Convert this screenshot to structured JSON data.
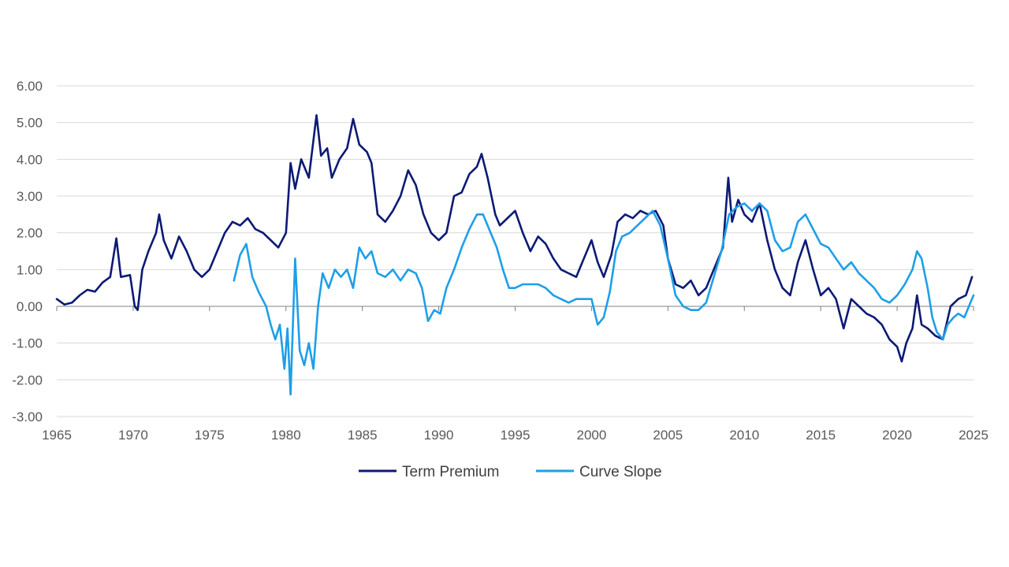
{
  "chart_data": {
    "type": "line",
    "title": "",
    "xlabel": "",
    "ylabel": "",
    "xlim": [
      1965,
      2025
    ],
    "ylim": [
      -3,
      6
    ],
    "grid": true,
    "legend_position": "bottom",
    "x_ticks": [
      {
        "value": 1965,
        "label": "1965"
      },
      {
        "value": 1970,
        "label": "1970"
      },
      {
        "value": 1975,
        "label": "1975"
      },
      {
        "value": 1980,
        "label": "1980"
      },
      {
        "value": 1985,
        "label": "1985"
      },
      {
        "value": 1990,
        "label": "1990"
      },
      {
        "value": 1995,
        "label": "1995"
      },
      {
        "value": 2000,
        "label": "2000"
      },
      {
        "value": 2005,
        "label": "2005"
      },
      {
        "value": 2010,
        "label": "2010"
      },
      {
        "value": 2015,
        "label": "2015"
      },
      {
        "value": 2020,
        "label": "2020"
      },
      {
        "value": 2025,
        "label": "2025"
      }
    ],
    "y_ticks": [
      {
        "value": 6,
        "label": "6.00"
      },
      {
        "value": 5,
        "label": "5.00"
      },
      {
        "value": 4,
        "label": "4.00"
      },
      {
        "value": 3,
        "label": "3.00"
      },
      {
        "value": 2,
        "label": "2.00"
      },
      {
        "value": 1,
        "label": "1.00"
      },
      {
        "value": 0,
        "label": "0.00"
      },
      {
        "value": -1,
        "label": "-1.00"
      },
      {
        "value": -2,
        "label": "-2.00"
      },
      {
        "value": -3,
        "label": "-3.00"
      }
    ],
    "series": [
      {
        "name": "Term Premium",
        "color": "#0c1a74",
        "points": [
          [
            1965.0,
            0.2
          ],
          [
            1965.5,
            0.05
          ],
          [
            1966.0,
            0.1
          ],
          [
            1966.5,
            0.3
          ],
          [
            1967.0,
            0.45
          ],
          [
            1967.5,
            0.4
          ],
          [
            1968.0,
            0.65
          ],
          [
            1968.5,
            0.8
          ],
          [
            1968.9,
            1.85
          ],
          [
            1969.2,
            0.8
          ],
          [
            1969.8,
            0.85
          ],
          [
            1970.1,
            0.0
          ],
          [
            1970.3,
            -0.1
          ],
          [
            1970.6,
            1.0
          ],
          [
            1971.0,
            1.5
          ],
          [
            1971.5,
            2.0
          ],
          [
            1971.7,
            2.5
          ],
          [
            1972.0,
            1.8
          ],
          [
            1972.5,
            1.3
          ],
          [
            1973.0,
            1.9
          ],
          [
            1973.5,
            1.5
          ],
          [
            1974.0,
            1.0
          ],
          [
            1974.5,
            0.8
          ],
          [
            1975.0,
            1.0
          ],
          [
            1975.5,
            1.5
          ],
          [
            1976.0,
            2.0
          ],
          [
            1976.5,
            2.3
          ],
          [
            1977.0,
            2.2
          ],
          [
            1977.5,
            2.4
          ],
          [
            1978.0,
            2.1
          ],
          [
            1978.5,
            2.0
          ],
          [
            1979.0,
            1.8
          ],
          [
            1979.5,
            1.6
          ],
          [
            1980.0,
            2.0
          ],
          [
            1980.3,
            3.9
          ],
          [
            1980.6,
            3.2
          ],
          [
            1981.0,
            4.0
          ],
          [
            1981.5,
            3.5
          ],
          [
            1982.0,
            5.2
          ],
          [
            1982.3,
            4.1
          ],
          [
            1982.7,
            4.3
          ],
          [
            1983.0,
            3.5
          ],
          [
            1983.5,
            4.0
          ],
          [
            1984.0,
            4.3
          ],
          [
            1984.4,
            5.1
          ],
          [
            1984.8,
            4.4
          ],
          [
            1985.3,
            4.2
          ],
          [
            1985.6,
            3.9
          ],
          [
            1986.0,
            2.5
          ],
          [
            1986.5,
            2.3
          ],
          [
            1987.0,
            2.6
          ],
          [
            1987.5,
            3.0
          ],
          [
            1988.0,
            3.7
          ],
          [
            1988.5,
            3.3
          ],
          [
            1989.0,
            2.5
          ],
          [
            1989.5,
            2.0
          ],
          [
            1990.0,
            1.8
          ],
          [
            1990.5,
            2.0
          ],
          [
            1991.0,
            3.0
          ],
          [
            1991.5,
            3.1
          ],
          [
            1992.0,
            3.6
          ],
          [
            1992.5,
            3.8
          ],
          [
            1992.8,
            4.15
          ],
          [
            1993.2,
            3.5
          ],
          [
            1993.7,
            2.5
          ],
          [
            1994.0,
            2.2
          ],
          [
            1994.5,
            2.4
          ],
          [
            1995.0,
            2.6
          ],
          [
            1995.5,
            2.0
          ],
          [
            1996.0,
            1.5
          ],
          [
            1996.5,
            1.9
          ],
          [
            1997.0,
            1.7
          ],
          [
            1997.5,
            1.3
          ],
          [
            1998.0,
            1.0
          ],
          [
            1998.5,
            0.9
          ],
          [
            1999.0,
            0.8
          ],
          [
            1999.5,
            1.3
          ],
          [
            2000.0,
            1.8
          ],
          [
            2000.4,
            1.2
          ],
          [
            2000.8,
            0.8
          ],
          [
            2001.3,
            1.4
          ],
          [
            2001.7,
            2.3
          ],
          [
            2002.2,
            2.5
          ],
          [
            2002.7,
            2.4
          ],
          [
            2003.2,
            2.6
          ],
          [
            2003.7,
            2.5
          ],
          [
            2004.2,
            2.6
          ],
          [
            2004.7,
            2.2
          ],
          [
            2005.0,
            1.3
          ],
          [
            2005.5,
            0.6
          ],
          [
            2006.0,
            0.5
          ],
          [
            2006.5,
            0.7
          ],
          [
            2007.0,
            0.3
          ],
          [
            2007.5,
            0.5
          ],
          [
            2008.0,
            1.0
          ],
          [
            2008.6,
            1.6
          ],
          [
            2008.95,
            3.5
          ],
          [
            2009.2,
            2.3
          ],
          [
            2009.6,
            2.9
          ],
          [
            2010.0,
            2.5
          ],
          [
            2010.5,
            2.3
          ],
          [
            2011.0,
            2.8
          ],
          [
            2011.5,
            1.8
          ],
          [
            2012.0,
            1.0
          ],
          [
            2012.5,
            0.5
          ],
          [
            2013.0,
            0.3
          ],
          [
            2013.5,
            1.2
          ],
          [
            2014.0,
            1.8
          ],
          [
            2014.5,
            1.0
          ],
          [
            2015.0,
            0.3
          ],
          [
            2015.5,
            0.5
          ],
          [
            2016.0,
            0.2
          ],
          [
            2016.5,
            -0.6
          ],
          [
            2017.0,
            0.2
          ],
          [
            2017.5,
            0.0
          ],
          [
            2018.0,
            -0.2
          ],
          [
            2018.5,
            -0.3
          ],
          [
            2019.0,
            -0.5
          ],
          [
            2019.5,
            -0.9
          ],
          [
            2020.0,
            -1.1
          ],
          [
            2020.3,
            -1.5
          ],
          [
            2020.6,
            -1.0
          ],
          [
            2021.0,
            -0.6
          ],
          [
            2021.3,
            0.3
          ],
          [
            2021.6,
            -0.5
          ],
          [
            2022.0,
            -0.6
          ],
          [
            2022.5,
            -0.8
          ],
          [
            2023.0,
            -0.9
          ],
          [
            2023.5,
            0.0
          ],
          [
            2024.0,
            0.2
          ],
          [
            2024.5,
            0.3
          ],
          [
            2024.9,
            0.8
          ]
        ]
      },
      {
        "name": "Curve Slope",
        "color": "#1e9fe8",
        "points": [
          [
            1976.6,
            0.7
          ],
          [
            1977.0,
            1.4
          ],
          [
            1977.4,
            1.7
          ],
          [
            1977.8,
            0.8
          ],
          [
            1978.2,
            0.4
          ],
          [
            1978.7,
            0.0
          ],
          [
            1979.0,
            -0.5
          ],
          [
            1979.3,
            -0.9
          ],
          [
            1979.6,
            -0.5
          ],
          [
            1979.9,
            -1.7
          ],
          [
            1980.1,
            -0.6
          ],
          [
            1980.3,
            -2.4
          ],
          [
            1980.6,
            1.3
          ],
          [
            1980.9,
            -1.2
          ],
          [
            1981.2,
            -1.6
          ],
          [
            1981.5,
            -1.0
          ],
          [
            1981.8,
            -1.7
          ],
          [
            1982.1,
            0.0
          ],
          [
            1982.4,
            0.9
          ],
          [
            1982.8,
            0.5
          ],
          [
            1983.2,
            1.0
          ],
          [
            1983.6,
            0.8
          ],
          [
            1984.0,
            1.0
          ],
          [
            1984.4,
            0.5
          ],
          [
            1984.8,
            1.6
          ],
          [
            1985.2,
            1.3
          ],
          [
            1985.6,
            1.5
          ],
          [
            1986.0,
            0.9
          ],
          [
            1986.5,
            0.8
          ],
          [
            1987.0,
            1.0
          ],
          [
            1987.5,
            0.7
          ],
          [
            1988.0,
            1.0
          ],
          [
            1988.5,
            0.9
          ],
          [
            1988.9,
            0.5
          ],
          [
            1989.3,
            -0.4
          ],
          [
            1989.7,
            -0.1
          ],
          [
            1990.1,
            -0.2
          ],
          [
            1990.5,
            0.5
          ],
          [
            1991.0,
            1.0
          ],
          [
            1991.5,
            1.6
          ],
          [
            1992.0,
            2.1
          ],
          [
            1992.5,
            2.5
          ],
          [
            1992.9,
            2.5
          ],
          [
            1993.3,
            2.1
          ],
          [
            1993.8,
            1.6
          ],
          [
            1994.2,
            1.0
          ],
          [
            1994.6,
            0.5
          ],
          [
            1995.0,
            0.5
          ],
          [
            1995.5,
            0.6
          ],
          [
            1996.0,
            0.6
          ],
          [
            1996.5,
            0.6
          ],
          [
            1997.0,
            0.5
          ],
          [
            1997.5,
            0.3
          ],
          [
            1998.0,
            0.2
          ],
          [
            1998.5,
            0.1
          ],
          [
            1999.0,
            0.2
          ],
          [
            1999.5,
            0.2
          ],
          [
            2000.0,
            0.2
          ],
          [
            2000.4,
            -0.5
          ],
          [
            2000.8,
            -0.3
          ],
          [
            2001.2,
            0.4
          ],
          [
            2001.6,
            1.5
          ],
          [
            2002.0,
            1.9
          ],
          [
            2002.5,
            2.0
          ],
          [
            2003.0,
            2.2
          ],
          [
            2003.5,
            2.4
          ],
          [
            2004.0,
            2.6
          ],
          [
            2004.5,
            2.2
          ],
          [
            2005.0,
            1.3
          ],
          [
            2005.5,
            0.3
          ],
          [
            2006.0,
            0.0
          ],
          [
            2006.5,
            -0.1
          ],
          [
            2007.0,
            -0.1
          ],
          [
            2007.5,
            0.1
          ],
          [
            2008.0,
            0.8
          ],
          [
            2008.5,
            1.5
          ],
          [
            2009.0,
            2.5
          ],
          [
            2009.5,
            2.7
          ],
          [
            2010.0,
            2.8
          ],
          [
            2010.5,
            2.6
          ],
          [
            2011.0,
            2.8
          ],
          [
            2011.5,
            2.6
          ],
          [
            2012.0,
            1.8
          ],
          [
            2012.5,
            1.5
          ],
          [
            2013.0,
            1.6
          ],
          [
            2013.5,
            2.3
          ],
          [
            2014.0,
            2.5
          ],
          [
            2014.5,
            2.1
          ],
          [
            2015.0,
            1.7
          ],
          [
            2015.5,
            1.6
          ],
          [
            2016.0,
            1.3
          ],
          [
            2016.5,
            1.0
          ],
          [
            2017.0,
            1.2
          ],
          [
            2017.5,
            0.9
          ],
          [
            2018.0,
            0.7
          ],
          [
            2018.5,
            0.5
          ],
          [
            2019.0,
            0.2
          ],
          [
            2019.5,
            0.1
          ],
          [
            2020.0,
            0.3
          ],
          [
            2020.5,
            0.6
          ],
          [
            2021.0,
            1.0
          ],
          [
            2021.3,
            1.5
          ],
          [
            2021.6,
            1.3
          ],
          [
            2022.0,
            0.5
          ],
          [
            2022.3,
            -0.3
          ],
          [
            2022.6,
            -0.7
          ],
          [
            2023.0,
            -0.9
          ],
          [
            2023.3,
            -0.5
          ],
          [
            2023.7,
            -0.3
          ],
          [
            2024.0,
            -0.2
          ],
          [
            2024.4,
            -0.3
          ],
          [
            2024.8,
            0.1
          ],
          [
            2025.0,
            0.3
          ]
        ]
      }
    ]
  }
}
